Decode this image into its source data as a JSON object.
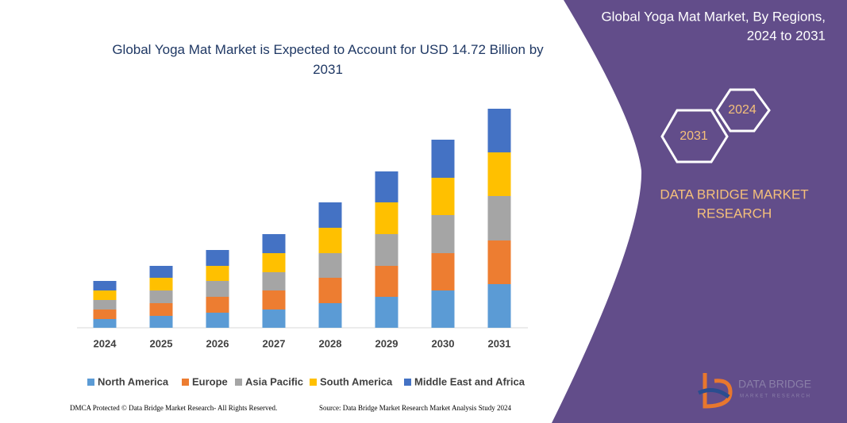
{
  "chart_data": {
    "type": "stacked_bar",
    "title": "Global Yoga Mat Market is Expected to Account for USD 14.72 Billion by 2031",
    "categories": [
      "2024",
      "2025",
      "2026",
      "2027",
      "2028",
      "2029",
      "2030",
      "2031"
    ],
    "series": [
      {
        "name": "North America",
        "color": "#5b9bd5",
        "values": [
          11,
          15,
          19,
          23,
          31,
          39,
          47,
          55
        ]
      },
      {
        "name": "Europe",
        "color": "#ed7d31",
        "values": [
          12,
          16,
          20,
          24,
          32,
          39,
          47,
          55
        ]
      },
      {
        "name": "Asia Pacific",
        "color": "#a5a5a5",
        "values": [
          12,
          16,
          20,
          23,
          31,
          40,
          48,
          56
        ]
      },
      {
        "name": "South America",
        "color": "#ffc000",
        "values": [
          12,
          16,
          19,
          24,
          32,
          40,
          47,
          55
        ]
      },
      {
        "name": "Middle East and Africa",
        "color": "#4472c4",
        "values": [
          12,
          15,
          20,
          24,
          32,
          39,
          48,
          55
        ]
      }
    ],
    "legend": "bottom"
  },
  "panel": {
    "title": "Global Yoga Mat Market, By Regions,",
    "subtitle": "2024 to 2031",
    "hex_labels": [
      "2024",
      "2031"
    ],
    "brand": [
      "DATA BRIDGE MARKET",
      "RESEARCH"
    ]
  },
  "logo": {
    "name": "DATA BRIDGE",
    "tagline": "MARKET RESEARCH"
  },
  "footer": {
    "left": "DMCA Protected © Data Bridge Market Research- All Rights Reserved.",
    "right": "Source: Data Bridge Market Research Market Analysis Study 2024"
  }
}
